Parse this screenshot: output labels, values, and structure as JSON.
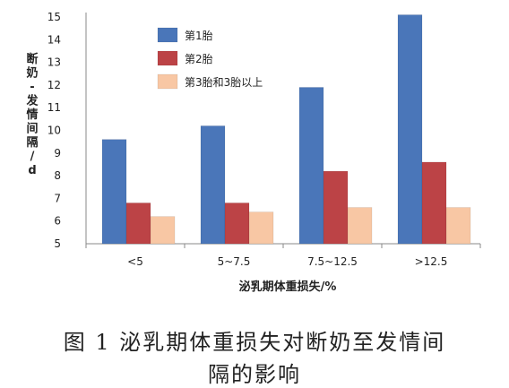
{
  "chart_data": {
    "type": "bar",
    "categories": [
      "<5",
      "5~7.5",
      "7.5~12.5",
      ">12.5"
    ],
    "series": [
      {
        "name": "第1胎",
        "color": "#4a76b9",
        "values": [
          9.6,
          10.2,
          11.9,
          15.1
        ]
      },
      {
        "name": "第2胎",
        "color": "#bc4346",
        "values": [
          6.8,
          6.8,
          8.2,
          8.6
        ]
      },
      {
        "name": "第3胎和3胎以上",
        "color": "#f8c7a4",
        "values": [
          6.2,
          6.4,
          6.6,
          6.6
        ]
      }
    ],
    "y_ticks": [
      5,
      6,
      7,
      8,
      9,
      10,
      11,
      12,
      13,
      14,
      15
    ],
    "ylim": [
      5,
      15.2
    ],
    "xlabel": "泌乳期体重损失/%",
    "ylabel": "断奶-发情间隔/d",
    "grid": false,
    "legend_position": "top-center"
  },
  "caption": {
    "line1": "图 1   泌乳期体重损失对断奶至发情间",
    "line2": "隔的影响"
  }
}
